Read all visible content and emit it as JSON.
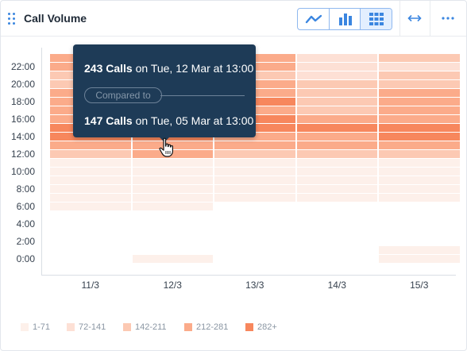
{
  "header": {
    "title": "Call Volume",
    "drag_icon": "drag-handle-icon",
    "view_buttons": [
      {
        "icon": "line-chart-icon",
        "active": false
      },
      {
        "icon": "bar-chart-icon",
        "active": false
      },
      {
        "icon": "heatmap-grid-icon",
        "active": true
      }
    ],
    "expand_icon": "horizontal-arrows-icon",
    "more_icon": "more-dots-icon"
  },
  "colors": {
    "accent": "#3b86e0",
    "tooltip_bg": "#1e3b57",
    "scale": [
      "#fdf0ea",
      "#fde0d5",
      "#fcc9b3",
      "#fbab8a",
      "#f7875d"
    ]
  },
  "tooltip": {
    "line1_bold": "243 Calls",
    "line1_rest": " on Tue, 12 Mar at 13:00",
    "compared_label": "Compared to",
    "line2_bold": "147 Calls",
    "line2_rest": " on Tue, 05 Mar at 13:00"
  },
  "cursor_icon": "hand-pointer-icon",
  "legend": [
    {
      "label": "1-71",
      "level": 0
    },
    {
      "label": "72-141",
      "level": 1
    },
    {
      "label": "142-211",
      "level": 2
    },
    {
      "label": "212-281",
      "level": 3
    },
    {
      "label": "282+",
      "level": 4
    }
  ],
  "chart_data": {
    "type": "heatmap",
    "x_categories": [
      "11/3",
      "12/3",
      "13/3",
      "14/3",
      "15/3"
    ],
    "y_tick_labels": [
      "22:00",
      "20:00",
      "18:00",
      "16:00",
      "14:00",
      "12:00",
      "10:00",
      "8:00",
      "6:00",
      "4:00",
      "2:00",
      "0:00"
    ],
    "y_hours": [
      0,
      1,
      2,
      3,
      4,
      5,
      6,
      7,
      8,
      9,
      10,
      11,
      12,
      13,
      14,
      15,
      16,
      17,
      18,
      19,
      20,
      21,
      22,
      23
    ],
    "levels_note_legend": [
      "1-71",
      "72-141",
      "142-211",
      "212-281",
      "282+"
    ],
    "levels": [
      [
        -1,
        0,
        -1,
        -1,
        0
      ],
      [
        -1,
        -1,
        -1,
        -1,
        0
      ],
      [
        -1,
        -1,
        -1,
        -1,
        -1
      ],
      [
        -1,
        -1,
        -1,
        -1,
        -1
      ],
      [
        -1,
        -1,
        -1,
        -1,
        -1
      ],
      [
        -1,
        -1,
        -1,
        -1,
        -1
      ],
      [
        0,
        0,
        -1,
        -1,
        -1
      ],
      [
        0,
        0,
        0,
        0,
        0
      ],
      [
        0,
        0,
        0,
        0,
        0
      ],
      [
        0,
        0,
        0,
        0,
        0
      ],
      [
        0,
        0,
        0,
        0,
        0
      ],
      [
        0,
        0,
        0,
        0,
        0
      ],
      [
        2,
        3,
        2,
        2,
        2
      ],
      [
        3,
        3,
        3,
        3,
        3
      ],
      [
        4,
        4,
        3,
        3,
        4
      ],
      [
        4,
        4,
        4,
        4,
        4
      ],
      [
        3,
        4,
        4,
        3,
        3
      ],
      [
        3,
        3,
        3,
        2,
        3
      ],
      [
        3,
        3,
        4,
        2,
        3
      ],
      [
        3,
        3,
        3,
        2,
        3
      ],
      [
        2,
        2,
        3,
        2,
        2
      ],
      [
        2,
        2,
        2,
        1,
        2
      ],
      [
        3,
        2,
        3,
        1,
        1
      ],
      [
        3,
        3,
        3,
        1,
        2
      ]
    ]
  }
}
